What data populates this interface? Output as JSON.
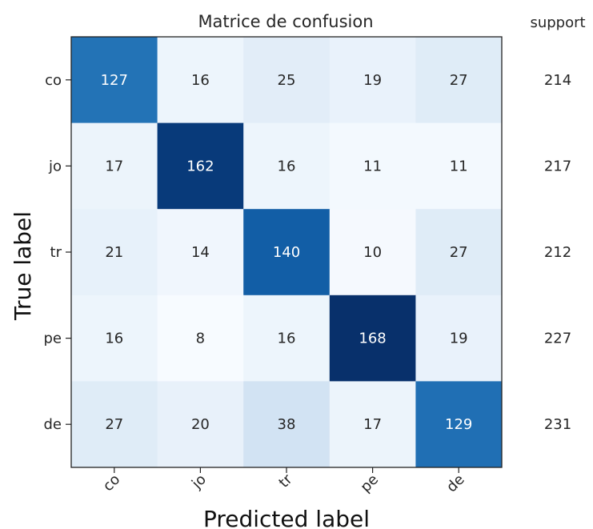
{
  "chart_data": {
    "type": "heatmap",
    "title": "Matrice de confusion",
    "xlabel": "Predicted label",
    "ylabel": "True label",
    "x_categories": [
      "co",
      "jo",
      "tr",
      "pe",
      "de"
    ],
    "y_categories": [
      "co",
      "jo",
      "tr",
      "pe",
      "de"
    ],
    "values": [
      [
        127,
        16,
        25,
        19,
        27
      ],
      [
        17,
        162,
        16,
        11,
        11
      ],
      [
        21,
        14,
        140,
        10,
        27
      ],
      [
        16,
        8,
        16,
        168,
        19
      ],
      [
        27,
        20,
        38,
        17,
        129
      ]
    ],
    "support_label": "support",
    "support": [
      214,
      217,
      212,
      227,
      231
    ],
    "colormap": "Blues",
    "color_low": "#f7fbff",
    "color_high": "#08306b",
    "text_light": "#ffffff",
    "text_dark": "#262626",
    "grid": false
  }
}
